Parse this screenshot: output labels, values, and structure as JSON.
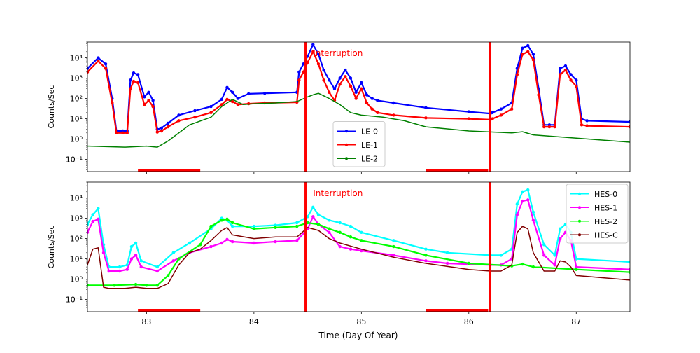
{
  "figure": {
    "xlabel": "Time (Day Of Year)",
    "shared_x_ticks": [
      83,
      84,
      85,
      86,
      87
    ],
    "xlim": [
      82.45,
      87.5
    ]
  },
  "chart_data": [
    {
      "type": "line",
      "panel": "top",
      "ylabel": "Counts/Sec",
      "yscale": "log",
      "ylim": [
        0.025,
        60000
      ],
      "y_ticks": [
        {
          "value": 0.1,
          "label": "10⁻¹"
        },
        {
          "value": 1,
          "label": "10⁰"
        },
        {
          "value": 10,
          "label": "10¹"
        },
        {
          "value": 100,
          "label": "10²"
        },
        {
          "value": 1000,
          "label": "10³"
        },
        {
          "value": 10000,
          "label": "10⁴"
        }
      ],
      "annotation": {
        "text": "Interruption",
        "x": 84.55,
        "y": 17000,
        "color": "#ff0000"
      },
      "vlines": [
        84.48,
        86.2
      ],
      "hbars": [
        {
          "x0": 82.92,
          "x1": 83.5
        },
        {
          "x0": 85.6,
          "x1": 86.18
        }
      ],
      "legend": "lower-center",
      "series": [
        {
          "name": "LE-0",
          "color": "#0000ff",
          "marker": true,
          "x": [
            82.45,
            82.55,
            82.62,
            82.68,
            82.72,
            82.78,
            82.82,
            82.85,
            82.88,
            82.92,
            82.98,
            83.02,
            83.06,
            83.1,
            83.14,
            83.2,
            83.3,
            83.45,
            83.6,
            83.7,
            83.75,
            83.8,
            83.85,
            83.95,
            84.1,
            84.4,
            84.42,
            84.46,
            84.5,
            84.55,
            84.6,
            84.65,
            84.7,
            84.75,
            84.8,
            84.85,
            84.9,
            84.95,
            85.0,
            85.05,
            85.1,
            85.15,
            85.3,
            85.6,
            86.0,
            86.2,
            86.22,
            86.3,
            86.4,
            86.45,
            86.5,
            86.55,
            86.6,
            86.65,
            86.7,
            86.75,
            86.8,
            86.85,
            86.9,
            86.95,
            87.0,
            87.05,
            87.1,
            87.5
          ],
          "y": [
            3000,
            10000,
            5000,
            100,
            2.5,
            2.5,
            2.5,
            800,
            1800,
            1500,
            120,
            200,
            80,
            3,
            3.5,
            6,
            15,
            25,
            40,
            90,
            350,
            200,
            100,
            170,
            180,
            200,
            2000,
            5000,
            12000,
            45000,
            15000,
            2500,
            800,
            300,
            1000,
            2500,
            1000,
            200,
            600,
            150,
            100,
            80,
            60,
            35,
            22,
            18,
            20,
            30,
            60,
            3000,
            30000,
            40000,
            15000,
            300,
            5,
            5,
            5,
            3000,
            4000,
            1500,
            800,
            10,
            8,
            7
          ]
        },
        {
          "name": "LE-1",
          "color": "#ff0000",
          "marker": true,
          "x": [
            82.45,
            82.55,
            82.62,
            82.68,
            82.72,
            82.78,
            82.82,
            82.85,
            82.88,
            82.92,
            82.98,
            83.02,
            83.06,
            83.1,
            83.14,
            83.2,
            83.3,
            83.45,
            83.6,
            83.7,
            83.75,
            83.8,
            83.85,
            83.95,
            84.1,
            84.4,
            84.42,
            84.46,
            84.5,
            84.55,
            84.6,
            84.65,
            84.7,
            84.75,
            84.8,
            84.85,
            84.9,
            84.95,
            85.0,
            85.05,
            85.1,
            85.15,
            85.3,
            85.6,
            86.0,
            86.2,
            86.22,
            86.3,
            86.4,
            86.45,
            86.5,
            86.55,
            86.6,
            86.65,
            86.7,
            86.75,
            86.8,
            86.85,
            86.9,
            86.95,
            87.0,
            87.05,
            87.1,
            87.5
          ],
          "y": [
            2000,
            7000,
            3000,
            60,
            2,
            2,
            2,
            300,
            700,
            600,
            50,
            80,
            40,
            2.2,
            2.5,
            4,
            8,
            12,
            20,
            50,
            90,
            70,
            50,
            55,
            60,
            65,
            800,
            2000,
            6000,
            20000,
            5000,
            800,
            200,
            80,
            500,
            1200,
            400,
            100,
            300,
            60,
            30,
            20,
            15,
            11,
            10,
            9,
            10,
            15,
            30,
            1500,
            15000,
            20000,
            8000,
            150,
            4,
            4,
            4,
            1500,
            2500,
            800,
            400,
            5,
            4.5,
            4
          ]
        },
        {
          "name": "LE-2",
          "color": "#008000",
          "marker": false,
          "x": [
            82.45,
            82.8,
            83.0,
            83.1,
            83.2,
            83.4,
            83.6,
            83.7,
            83.8,
            83.9,
            84.0,
            84.2,
            84.4,
            84.5,
            84.55,
            84.6,
            84.7,
            84.8,
            84.9,
            85.0,
            85.2,
            85.4,
            85.6,
            86.0,
            86.4,
            86.5,
            86.6,
            87.0,
            87.5
          ],
          "y": [
            0.45,
            0.4,
            0.45,
            0.4,
            0.8,
            5,
            12,
            40,
            90,
            50,
            55,
            60,
            70,
            120,
            150,
            180,
            100,
            50,
            20,
            15,
            12,
            8,
            4,
            2.5,
            2,
            2.3,
            1.6,
            1.1,
            0.7
          ]
        }
      ]
    },
    {
      "type": "line",
      "panel": "bottom",
      "ylabel": "Counts/Sec",
      "yscale": "log",
      "ylim": [
        0.025,
        60000
      ],
      "y_ticks": [
        {
          "value": 0.1,
          "label": "10⁻¹"
        },
        {
          "value": 1,
          "label": "10⁰"
        },
        {
          "value": 10,
          "label": "10¹"
        },
        {
          "value": 100,
          "label": "10²"
        },
        {
          "value": 1000,
          "label": "10³"
        },
        {
          "value": 10000,
          "label": "10⁴"
        }
      ],
      "annotation": {
        "text": "Interruption",
        "x": 84.55,
        "y": 17000,
        "color": "#ff0000"
      },
      "vlines": [
        84.48,
        86.2
      ],
      "hbars": [
        {
          "x0": 82.92,
          "x1": 83.5
        },
        {
          "x0": 85.6,
          "x1": 86.18
        }
      ],
      "legend": "upper-right",
      "series": [
        {
          "name": "HES-0",
          "color": "#00ffff",
          "marker": true,
          "x": [
            82.45,
            82.5,
            82.55,
            82.6,
            82.65,
            82.75,
            82.82,
            82.86,
            82.9,
            82.95,
            83.1,
            83.25,
            83.4,
            83.6,
            83.7,
            83.75,
            83.8,
            84.0,
            84.2,
            84.4,
            84.5,
            84.55,
            84.6,
            84.7,
            84.8,
            84.9,
            85.0,
            85.3,
            85.6,
            85.8,
            86.2,
            86.3,
            86.4,
            86.45,
            86.5,
            86.55,
            86.6,
            86.7,
            86.8,
            86.85,
            86.9,
            86.95,
            87.0,
            87.5
          ],
          "y": [
            500,
            1500,
            3000,
            50,
            4,
            4,
            5,
            40,
            60,
            8,
            4,
            20,
            60,
            300,
            1000,
            800,
            400,
            400,
            450,
            600,
            1200,
            3500,
            1500,
            800,
            600,
            400,
            200,
            80,
            30,
            20,
            15,
            15,
            30,
            5000,
            20000,
            25000,
            2000,
            50,
            15,
            300,
            500,
            200,
            10,
            7
          ]
        },
        {
          "name": "HES-1",
          "color": "#ff00ff",
          "marker": true,
          "x": [
            82.45,
            82.5,
            82.55,
            82.6,
            82.65,
            82.75,
            82.82,
            82.86,
            82.9,
            82.95,
            83.1,
            83.25,
            83.4,
            83.6,
            83.7,
            83.75,
            83.8,
            84.0,
            84.2,
            84.4,
            84.5,
            84.55,
            84.6,
            84.7,
            84.8,
            84.9,
            85.0,
            85.3,
            85.6,
            85.8,
            86.2,
            86.3,
            86.4,
            86.45,
            86.5,
            86.55,
            86.6,
            86.7,
            86.8,
            86.85,
            86.9,
            86.95,
            87.0,
            87.5
          ],
          "y": [
            200,
            700,
            900,
            20,
            2.5,
            2.5,
            3,
            10,
            15,
            4,
            2.5,
            8,
            20,
            40,
            60,
            90,
            70,
            60,
            70,
            80,
            300,
            1200,
            500,
            200,
            40,
            30,
            25,
            15,
            8,
            6,
            5,
            5,
            10,
            1500,
            7000,
            8000,
            800,
            15,
            5,
            100,
            200,
            80,
            4,
            3
          ]
        },
        {
          "name": "HES-2",
          "color": "#00ff00",
          "marker": true,
          "x": [
            82.45,
            82.7,
            82.9,
            83.0,
            83.1,
            83.2,
            83.3,
            83.5,
            83.6,
            83.7,
            83.75,
            83.8,
            84.0,
            84.2,
            84.4,
            84.5,
            84.6,
            84.7,
            84.8,
            84.9,
            85.0,
            85.3,
            85.6,
            86.0,
            86.4,
            86.5,
            86.6,
            87.0,
            87.5
          ],
          "y": [
            0.5,
            0.5,
            0.55,
            0.5,
            0.5,
            1.5,
            10,
            50,
            400,
            800,
            900,
            600,
            300,
            350,
            400,
            600,
            500,
            300,
            200,
            120,
            80,
            40,
            15,
            6,
            4.5,
            5.5,
            4,
            3,
            2.2
          ]
        },
        {
          "name": "HES-C",
          "color": "#800000",
          "marker": false,
          "x": [
            82.45,
            82.5,
            82.55,
            82.6,
            82.65,
            82.8,
            82.9,
            83.0,
            83.1,
            83.2,
            83.3,
            83.4,
            83.5,
            83.6,
            83.7,
            83.75,
            83.8,
            84.0,
            84.2,
            84.4,
            84.5,
            84.6,
            84.7,
            84.8,
            85.0,
            85.3,
            85.6,
            86.0,
            86.2,
            86.3,
            86.4,
            86.45,
            86.5,
            86.55,
            86.6,
            86.7,
            86.8,
            86.85,
            86.9,
            86.95,
            87.0,
            87.5
          ],
          "y": [
            5,
            30,
            35,
            0.4,
            0.35,
            0.35,
            0.4,
            0.35,
            0.35,
            0.6,
            5,
            20,
            30,
            80,
            250,
            350,
            150,
            100,
            120,
            120,
            350,
            250,
            100,
            60,
            30,
            12,
            6,
            3,
            2.5,
            2.5,
            5,
            200,
            400,
            300,
            20,
            2.5,
            2.5,
            8,
            7,
            4,
            1.5,
            0.9
          ]
        }
      ]
    }
  ]
}
